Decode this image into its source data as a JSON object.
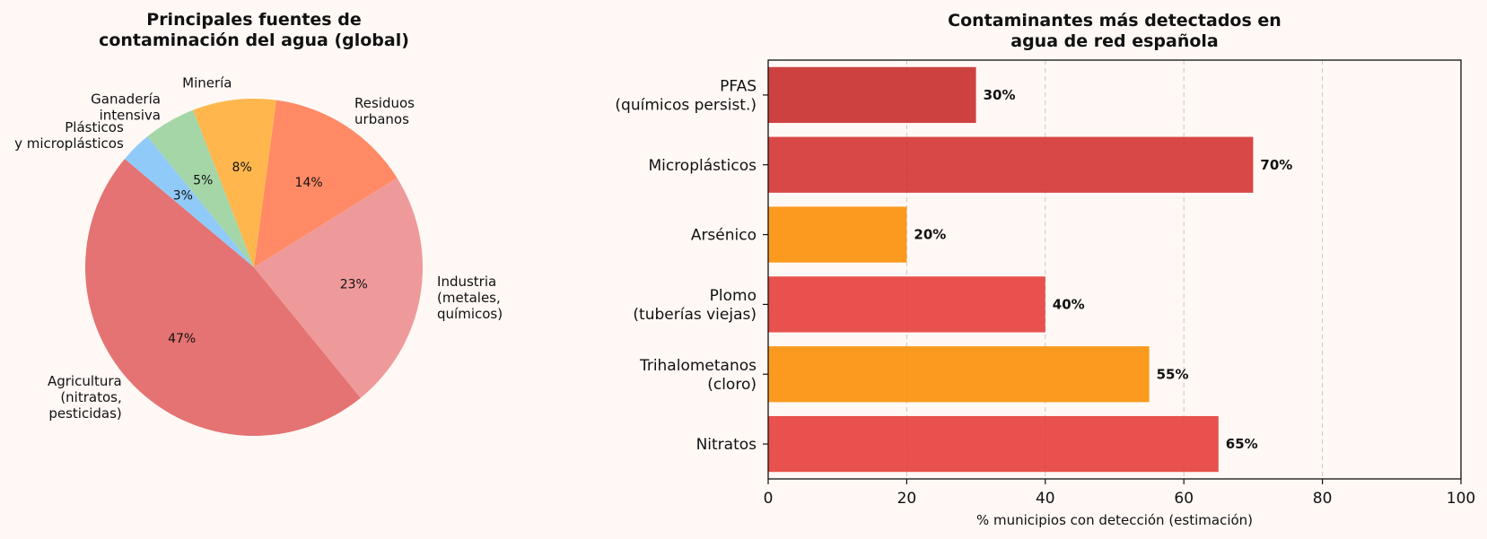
{
  "chart_data": [
    {
      "type": "pie",
      "title_lines": [
        "Principales fuentes de",
        "contaminación del agua (global)"
      ],
      "slices": [
        {
          "label_lines": [
            "Agricultura",
            "(nitratos,",
            "pesticidas)"
          ],
          "value": 47,
          "pct_label": "47%",
          "color": "#e57373"
        },
        {
          "label_lines": [
            "Industria",
            "(metales,",
            "químicos)"
          ],
          "value": 23,
          "pct_label": "23%",
          "color": "#ef9a9a"
        },
        {
          "label_lines": [
            "Residuos",
            "urbanos"
          ],
          "value": 14,
          "pct_label": "14%",
          "color": "#ff8a65"
        },
        {
          "label_lines": [
            "Minería"
          ],
          "value": 8,
          "pct_label": "8%",
          "color": "#ffb74d"
        },
        {
          "label_lines": [
            "Ganadería",
            "intensiva"
          ],
          "value": 5,
          "pct_label": "5%",
          "color": "#a5d6a7"
        },
        {
          "label_lines": [
            "Plásticos",
            "y microplásticos"
          ],
          "value": 3,
          "pct_label": "3%",
          "color": "#90caf9"
        }
      ],
      "start_angle_deg": 140,
      "direction": "counterclockwise"
    },
    {
      "type": "bar",
      "orientation": "horizontal",
      "title_lines": [
        "Contaminantes más detectados en",
        "agua de red española"
      ],
      "xlabel": "% municipios con detección (estimación)",
      "xlim": [
        0,
        100
      ],
      "xticks": [
        0,
        20,
        40,
        60,
        80,
        100
      ],
      "grid": "x, dashed",
      "categories": [
        {
          "label_lines": [
            "Nitratos"
          ],
          "value": 65,
          "value_label": "65%",
          "color": "#e53935"
        },
        {
          "label_lines": [
            "Trihalometanos",
            "(cloro)"
          ],
          "value": 55,
          "value_label": "55%",
          "color": "#fb8c00"
        },
        {
          "label_lines": [
            "Plomo",
            "(tuberías viejas)"
          ],
          "value": 40,
          "value_label": "40%",
          "color": "#e53935"
        },
        {
          "label_lines": [
            "Arsénico"
          ],
          "value": 20,
          "value_label": "20%",
          "color": "#fb8c00"
        },
        {
          "label_lines": [
            "Microplásticos"
          ],
          "value": 70,
          "value_label": "70%",
          "color": "#d32f2f"
        },
        {
          "label_lines": [
            "PFAS",
            "(químicos persist.)"
          ],
          "value": 30,
          "value_label": "30%",
          "color": "#c62828"
        }
      ]
    }
  ]
}
